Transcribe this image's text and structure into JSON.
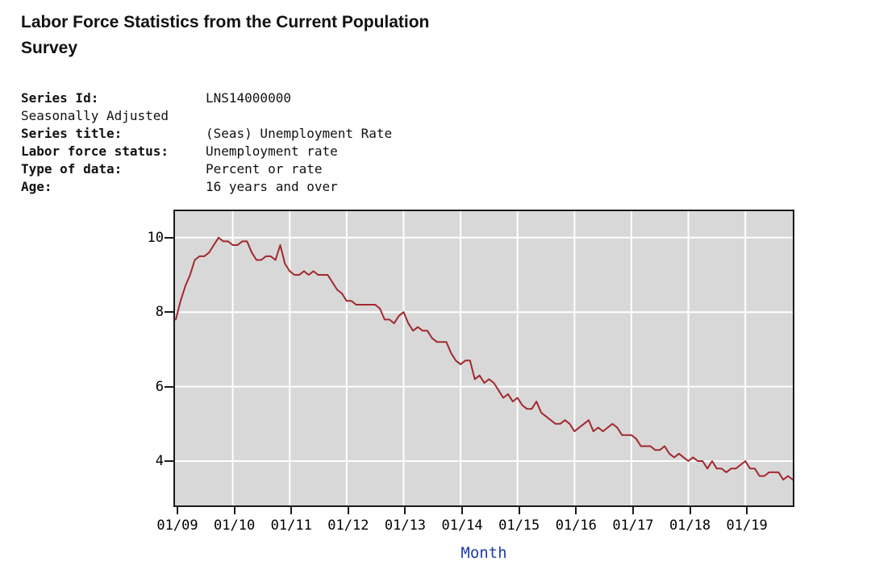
{
  "header": {
    "title": "Labor Force Statistics from the Current Population Survey"
  },
  "metadata": {
    "rows": [
      {
        "label": "Series Id:",
        "value": "LNS14000000"
      },
      {
        "label": "Seasonally Adjusted",
        "value": ""
      },
      {
        "label": "Series title:",
        "value": "(Seas) Unemployment Rate"
      },
      {
        "label": "Labor force status:",
        "value": "Unemployment rate"
      },
      {
        "label": "Type of data:",
        "value": "Percent or rate"
      },
      {
        "label": "Age:",
        "value": "16 years and over"
      }
    ]
  },
  "chart_data": {
    "type": "line",
    "title": "",
    "series_name": "(Seas) Unemployment Rate",
    "xlabel": "Month",
    "ylabel": "",
    "x_start": "2009-01",
    "x_end": "2019-11",
    "x_tick_labels": [
      "01/09",
      "01/10",
      "01/11",
      "01/12",
      "01/13",
      "01/14",
      "01/15",
      "01/16",
      "01/17",
      "01/18",
      "01/19"
    ],
    "x_tick_month_indices": [
      0,
      12,
      24,
      36,
      48,
      60,
      72,
      84,
      96,
      108,
      120
    ],
    "y_ticks": [
      10,
      8,
      6,
      4
    ],
    "y_tick_labels": [
      "10",
      "8",
      "6",
      "4"
    ],
    "ylim": [
      2.81,
      10.71
    ],
    "grid": true,
    "legend": false,
    "values": [
      7.8,
      8.3,
      8.7,
      9.0,
      9.4,
      9.5,
      9.5,
      9.6,
      9.8,
      10.0,
      9.9,
      9.9,
      9.8,
      9.8,
      9.9,
      9.9,
      9.6,
      9.4,
      9.4,
      9.5,
      9.5,
      9.4,
      9.8,
      9.3,
      9.1,
      9.0,
      9.0,
      9.1,
      9.0,
      9.1,
      9.0,
      9.0,
      9.0,
      8.8,
      8.6,
      8.5,
      8.3,
      8.3,
      8.2,
      8.2,
      8.2,
      8.2,
      8.2,
      8.1,
      7.8,
      7.8,
      7.7,
      7.9,
      8.0,
      7.7,
      7.5,
      7.6,
      7.5,
      7.5,
      7.3,
      7.2,
      7.2,
      7.2,
      6.9,
      6.7,
      6.6,
      6.7,
      6.7,
      6.2,
      6.3,
      6.1,
      6.2,
      6.1,
      5.9,
      5.7,
      5.8,
      5.6,
      5.7,
      5.5,
      5.4,
      5.4,
      5.6,
      5.3,
      5.2,
      5.1,
      5.0,
      5.0,
      5.1,
      5.0,
      4.8,
      4.9,
      5.0,
      5.1,
      4.8,
      4.9,
      4.8,
      4.9,
      5.0,
      4.9,
      4.7,
      4.7,
      4.7,
      4.6,
      4.4,
      4.4,
      4.4,
      4.3,
      4.3,
      4.4,
      4.2,
      4.1,
      4.2,
      4.1,
      4.0,
      4.1,
      4.0,
      4.0,
      3.8,
      4.0,
      3.8,
      3.8,
      3.7,
      3.8,
      3.8,
      3.9,
      4.0,
      3.8,
      3.8,
      3.6,
      3.6,
      3.7,
      3.7,
      3.7,
      3.5,
      3.6,
      3.5
    ],
    "colors": {
      "line": "#a2282d",
      "plot_background": "#d8d8d8",
      "gridline": "#ffffff",
      "frame": "#1a1a1a",
      "x_axis_title": "#1e3ca8",
      "tick_text": "#000000"
    }
  }
}
